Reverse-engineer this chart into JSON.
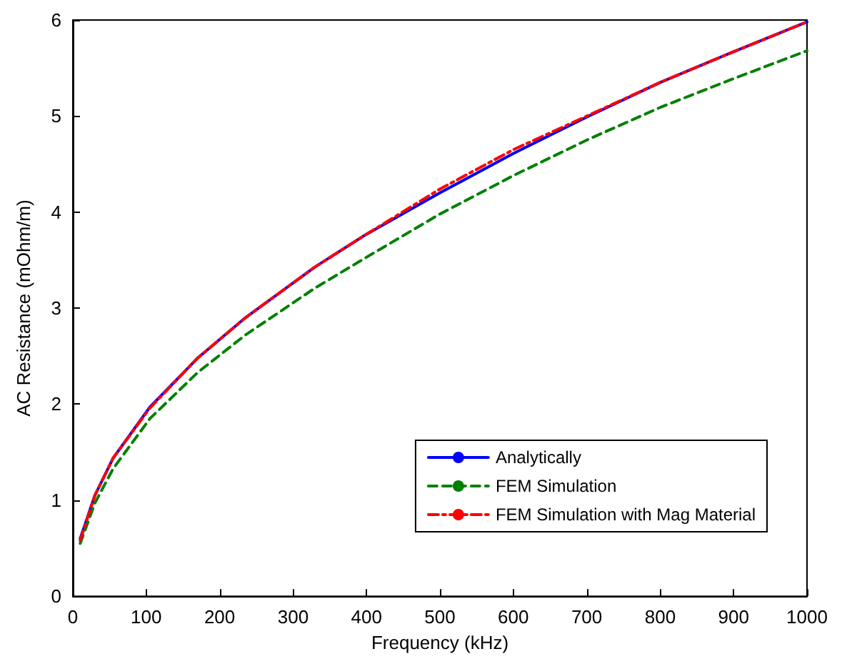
{
  "chart_data": {
    "type": "line",
    "xlabel": "Frequency (kHz)",
    "ylabel": "AC Resistance (mOhm/m)",
    "x": [
      10,
      30,
      55,
      105,
      170,
      235,
      330,
      400,
      500,
      600,
      700,
      800,
      900,
      1000
    ],
    "series": [
      {
        "name": "Analytically",
        "color": "#0000ff",
        "line_style": "solid",
        "values": [
          0.6,
          1.05,
          1.44,
          1.97,
          2.48,
          2.9,
          3.43,
          3.77,
          4.2,
          4.61,
          4.99,
          5.35,
          5.67,
          5.98
        ]
      },
      {
        "name": "FEM Simulation",
        "color": "#008000",
        "line_style": "dashed",
        "values": [
          0.55,
          0.97,
          1.33,
          1.85,
          2.33,
          2.72,
          3.21,
          3.53,
          3.98,
          4.38,
          4.75,
          5.09,
          5.39,
          5.68
        ]
      },
      {
        "name": "FEM Simulation with Mag Material",
        "color": "#ff0000",
        "line_style": "dashdot",
        "values": [
          0.58,
          1.05,
          1.44,
          1.96,
          2.48,
          2.9,
          3.43,
          3.77,
          4.24,
          4.65,
          5.0,
          5.35,
          5.67,
          5.98
        ]
      }
    ],
    "xlim": [
      0,
      1000
    ],
    "xticks": [
      0,
      100,
      200,
      300,
      400,
      500,
      600,
      700,
      800,
      900,
      1000
    ],
    "ylim": [
      0,
      6
    ],
    "yticks": [
      0,
      1,
      2,
      3,
      4,
      5,
      6
    ],
    "grid": false,
    "legend": "bottom right",
    "marker": "none"
  }
}
